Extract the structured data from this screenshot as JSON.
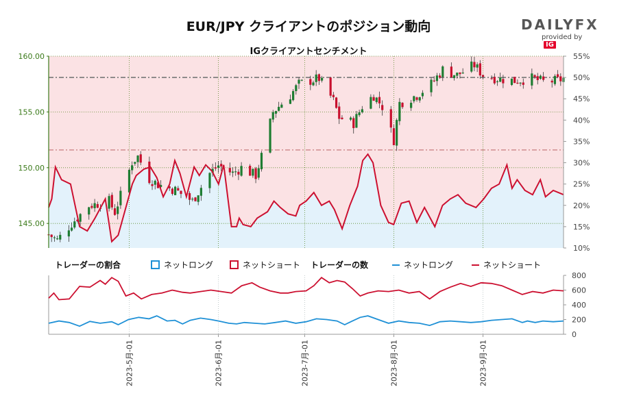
{
  "header": {
    "title": "EUR/JPY クライアントのポジション動向",
    "subtitle": "IGクライアントセンチメント"
  },
  "brand": {
    "logo_left": "DAILY",
    "logo_right": "FX",
    "provided": "provided by",
    "ig": "IG"
  },
  "legend": {
    "ratio_title": "トレーダーの割合",
    "net_long": "ネットロング",
    "net_short": "ネットショート",
    "count_title": "トレーダーの数",
    "net_long2": "ネットロング",
    "net_short2": "ネットショート"
  },
  "colors": {
    "long": "#1e90d6",
    "short": "#cc1030",
    "long_fill": "#e3f2fb",
    "short_fill": "#fbe2e4",
    "up": "#1e7d32",
    "down": "#c8102e",
    "price_axis": "#3b7a1a"
  },
  "chart_data": [
    {
      "type": "candlestick",
      "title": "EUR/JPY",
      "x_axis": "date",
      "x_range": [
        "2023-04-03",
        "2023-09-29"
      ],
      "x_ticks": [
        "2023-5月-01",
        "2023-6月-01",
        "2023-7月-01",
        "2023-8月-01",
        "2023-9月-01"
      ],
      "y_left_ticks": [
        "145.00",
        "150.00",
        "155.00",
        "160.00"
      ],
      "y_left_range": [
        142.8,
        160.0
      ],
      "y_right_ticks": [
        "10%",
        "15%",
        "20%",
        "25%",
        "30%",
        "35%",
        "40%",
        "45%",
        "50%",
        "55%"
      ],
      "y_right_range": [
        10,
        55
      ],
      "reference_lines": [
        50,
        33
      ],
      "price_anchors": [
        [
          "2023-04-03",
          144.0
        ],
        [
          "2023-04-06",
          143.5
        ],
        [
          "2023-04-11",
          145.0
        ],
        [
          "2023-04-17",
          146.6
        ],
        [
          "2023-04-24",
          147.0
        ],
        [
          "2023-04-26",
          146.0
        ],
        [
          "2023-05-02",
          150.5
        ],
        [
          "2023-05-04",
          151.0
        ],
        [
          "2023-05-08",
          149.0
        ],
        [
          "2023-05-11",
          148.5
        ],
        [
          "2023-05-17",
          148.0
        ],
        [
          "2023-05-23",
          147.0
        ],
        [
          "2023-05-29",
          149.5
        ],
        [
          "2023-06-01",
          150.2
        ],
        [
          "2023-06-06",
          149.5
        ],
        [
          "2023-06-09",
          150.0
        ],
        [
          "2023-06-14",
          149.3
        ],
        [
          "2023-06-16",
          151.0
        ],
        [
          "2023-06-20",
          155.0
        ],
        [
          "2023-06-26",
          156.5
        ],
        [
          "2023-06-29",
          157.5
        ],
        [
          "2023-07-03",
          157.8
        ],
        [
          "2023-07-06",
          158.0
        ],
        [
          "2023-07-11",
          156.0
        ],
        [
          "2023-07-13",
          154.5
        ],
        [
          "2023-07-18",
          154.0
        ],
        [
          "2023-07-21",
          155.5
        ],
        [
          "2023-07-25",
          156.5
        ],
        [
          "2023-07-28",
          155.5
        ],
        [
          "2023-08-01",
          152.5
        ],
        [
          "2023-08-03",
          155.8
        ],
        [
          "2023-08-09",
          156.5
        ],
        [
          "2023-08-14",
          157.5
        ],
        [
          "2023-08-18",
          158.8
        ],
        [
          "2023-08-23",
          158.3
        ],
        [
          "2023-08-29",
          159.2
        ],
        [
          "2023-09-01",
          158.3
        ],
        [
          "2023-09-06",
          158.0
        ],
        [
          "2023-09-12",
          157.8
        ],
        [
          "2023-09-18",
          158.0
        ],
        [
          "2023-09-22",
          157.7
        ],
        [
          "2023-09-27",
          157.8
        ],
        [
          "2023-09-29",
          158.0
        ]
      ],
      "net_long_pct": [
        [
          0.0,
          19.5
        ],
        [
          0.012,
          21.5
        ],
        [
          0.026,
          29.0
        ],
        [
          0.05,
          26.0
        ],
        [
          0.085,
          25.0
        ],
        [
          0.12,
          15.0
        ],
        [
          0.15,
          14.0
        ],
        [
          0.18,
          17.0
        ],
        [
          0.22,
          21.5
        ],
        [
          0.245,
          11.5
        ],
        [
          0.27,
          13.0
        ],
        [
          0.3,
          19.5
        ],
        [
          0.325,
          25.0
        ],
        [
          0.34,
          27.0
        ],
        [
          0.37,
          28.5
        ],
        [
          0.395,
          29.0
        ],
        [
          0.42,
          26.5
        ],
        [
          0.445,
          22.0
        ],
        [
          0.47,
          25.0
        ],
        [
          0.49,
          30.5
        ],
        [
          0.51,
          27.5
        ],
        [
          0.535,
          22.0
        ],
        [
          0.565,
          29.0
        ],
        [
          0.585,
          27.0
        ],
        [
          0.61,
          29.5
        ],
        [
          0.635,
          28.0
        ],
        [
          0.66,
          25.0
        ],
        [
          0.68,
          29.5
        ],
        [
          0.71,
          15.0
        ],
        [
          0.73,
          15.0
        ],
        [
          0.74,
          17.0
        ],
        [
          0.755,
          15.5
        ],
        [
          0.785,
          15.0
        ],
        [
          0.81,
          17.0
        ],
        [
          0.85,
          18.5
        ],
        [
          0.875,
          21.0
        ],
        [
          0.9,
          19.5
        ],
        [
          0.93,
          18.0
        ],
        [
          0.96,
          17.5
        ],
        [
          0.975,
          20.0
        ],
        [
          1.0,
          21.0
        ],
        [
          1.03,
          23.0
        ],
        [
          1.06,
          20.0
        ],
        [
          1.09,
          21.0
        ],
        [
          1.11,
          19.0
        ],
        [
          1.14,
          14.5
        ],
        [
          1.17,
          20.0
        ],
        [
          1.2,
          24.5
        ],
        [
          1.22,
          30.5
        ],
        [
          1.24,
          32.0
        ],
        [
          1.26,
          30.0
        ],
        [
          1.29,
          20.0
        ],
        [
          1.32,
          16.0
        ],
        [
          1.34,
          15.5
        ],
        [
          1.37,
          20.5
        ],
        [
          1.4,
          21.0
        ],
        [
          1.43,
          16.0
        ],
        [
          1.46,
          19.5
        ],
        [
          1.5,
          15.0
        ],
        [
          1.53,
          20.0
        ],
        [
          1.56,
          21.5
        ],
        [
          1.59,
          22.5
        ],
        [
          1.62,
          20.5
        ],
        [
          1.66,
          19.5
        ],
        [
          1.69,
          21.5
        ],
        [
          1.72,
          24.0
        ],
        [
          1.75,
          25.0
        ],
        [
          1.78,
          29.5
        ],
        [
          1.8,
          24.0
        ],
        [
          1.82,
          26.0
        ],
        [
          1.85,
          23.5
        ],
        [
          1.88,
          22.5
        ],
        [
          1.91,
          26.0
        ],
        [
          1.93,
          22.0
        ],
        [
          1.96,
          23.5
        ],
        [
          2.0,
          22.5
        ]
      ],
      "series": [
        {
          "name": "ネットロング",
          "color": "#1e90d6"
        },
        {
          "name": "ネットショート",
          "color": "#cc1030"
        }
      ]
    },
    {
      "type": "line",
      "title": "トレーダーの数",
      "y_ticks": [
        "0",
        "200",
        "400",
        "600",
        "800"
      ],
      "y_range": [
        0,
        800
      ],
      "net_long_count": [
        [
          0.0,
          150
        ],
        [
          0.04,
          180
        ],
        [
          0.08,
          160
        ],
        [
          0.12,
          110
        ],
        [
          0.16,
          175
        ],
        [
          0.2,
          150
        ],
        [
          0.245,
          170
        ],
        [
          0.27,
          130
        ],
        [
          0.31,
          200
        ],
        [
          0.35,
          230
        ],
        [
          0.39,
          210
        ],
        [
          0.42,
          250
        ],
        [
          0.46,
          180
        ],
        [
          0.49,
          190
        ],
        [
          0.52,
          140
        ],
        [
          0.55,
          190
        ],
        [
          0.59,
          220
        ],
        [
          0.63,
          200
        ],
        [
          0.66,
          180
        ],
        [
          0.7,
          150
        ],
        [
          0.73,
          140
        ],
        [
          0.76,
          160
        ],
        [
          0.8,
          150
        ],
        [
          0.84,
          140
        ],
        [
          0.88,
          160
        ],
        [
          0.92,
          180
        ],
        [
          0.96,
          150
        ],
        [
          1.0,
          170
        ],
        [
          1.04,
          210
        ],
        [
          1.08,
          200
        ],
        [
          1.12,
          180
        ],
        [
          1.15,
          130
        ],
        [
          1.18,
          180
        ],
        [
          1.21,
          230
        ],
        [
          1.24,
          250
        ],
        [
          1.28,
          200
        ],
        [
          1.32,
          150
        ],
        [
          1.36,
          180
        ],
        [
          1.4,
          160
        ],
        [
          1.44,
          150
        ],
        [
          1.48,
          120
        ],
        [
          1.52,
          170
        ],
        [
          1.56,
          180
        ],
        [
          1.6,
          170
        ],
        [
          1.64,
          160
        ],
        [
          1.68,
          170
        ],
        [
          1.72,
          190
        ],
        [
          1.76,
          200
        ],
        [
          1.8,
          210
        ],
        [
          1.84,
          160
        ],
        [
          1.86,
          180
        ],
        [
          1.89,
          160
        ],
        [
          1.92,
          180
        ],
        [
          1.96,
          170
        ],
        [
          2.0,
          180
        ]
      ],
      "net_short_count": [
        [
          0.0,
          490
        ],
        [
          0.02,
          560
        ],
        [
          0.04,
          470
        ],
        [
          0.08,
          480
        ],
        [
          0.12,
          650
        ],
        [
          0.16,
          640
        ],
        [
          0.2,
          730
        ],
        [
          0.22,
          680
        ],
        [
          0.245,
          770
        ],
        [
          0.27,
          720
        ],
        [
          0.3,
          520
        ],
        [
          0.33,
          560
        ],
        [
          0.36,
          480
        ],
        [
          0.4,
          540
        ],
        [
          0.44,
          560
        ],
        [
          0.48,
          600
        ],
        [
          0.52,
          570
        ],
        [
          0.55,
          560
        ],
        [
          0.59,
          580
        ],
        [
          0.63,
          600
        ],
        [
          0.67,
          580
        ],
        [
          0.71,
          560
        ],
        [
          0.75,
          660
        ],
        [
          0.79,
          700
        ],
        [
          0.82,
          640
        ],
        [
          0.86,
          590
        ],
        [
          0.9,
          560
        ],
        [
          0.93,
          560
        ],
        [
          0.96,
          580
        ],
        [
          1.0,
          590
        ],
        [
          1.03,
          660
        ],
        [
          1.06,
          770
        ],
        [
          1.09,
          700
        ],
        [
          1.12,
          730
        ],
        [
          1.15,
          710
        ],
        [
          1.18,
          620
        ],
        [
          1.21,
          520
        ],
        [
          1.24,
          560
        ],
        [
          1.28,
          590
        ],
        [
          1.32,
          580
        ],
        [
          1.36,
          600
        ],
        [
          1.4,
          560
        ],
        [
          1.44,
          580
        ],
        [
          1.48,
          480
        ],
        [
          1.52,
          580
        ],
        [
          1.56,
          640
        ],
        [
          1.6,
          690
        ],
        [
          1.64,
          650
        ],
        [
          1.68,
          700
        ],
        [
          1.72,
          690
        ],
        [
          1.76,
          660
        ],
        [
          1.8,
          600
        ],
        [
          1.84,
          540
        ],
        [
          1.88,
          580
        ],
        [
          1.92,
          560
        ],
        [
          1.96,
          600
        ],
        [
          2.0,
          590
        ]
      ],
      "series": [
        {
          "name": "ネットロング",
          "color": "#1e90d6"
        },
        {
          "name": "ネットショート",
          "color": "#cc1030"
        }
      ]
    }
  ]
}
